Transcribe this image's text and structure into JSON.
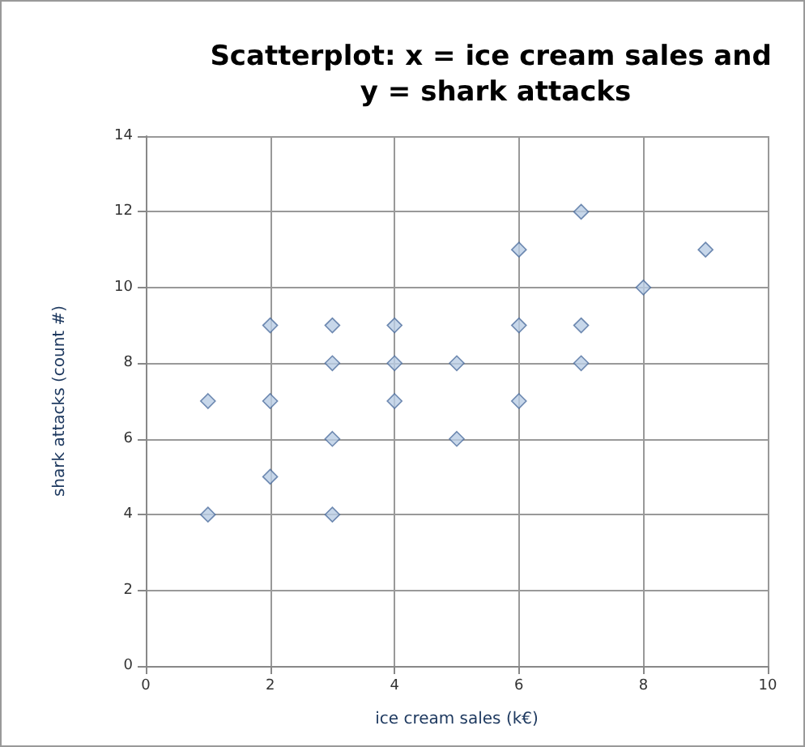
{
  "chart_data": {
    "type": "scatter",
    "title": "Scatterplot: x = ice cream sales and y = shark attacks",
    "xlabel": "ice cream sales (k€)",
    "ylabel": "shark attacks (count #)",
    "series": [
      {
        "color": "#b9cde5",
        "x": [
          1,
          1,
          2,
          2,
          2,
          3,
          3,
          3,
          3,
          4,
          4,
          4,
          5,
          5,
          6,
          6,
          6,
          7,
          7,
          7,
          8,
          9
        ],
        "values": [
          7,
          4,
          9,
          7,
          5,
          9,
          8,
          6,
          4,
          9,
          8,
          7,
          8,
          6,
          11,
          9,
          7,
          12,
          9,
          8,
          10,
          11
        ]
      }
    ],
    "xlim": [
      0,
      10
    ],
    "xticks": [
      0,
      2,
      4,
      6,
      8,
      10
    ],
    "ylim": [
      0,
      14
    ],
    "yticks": [
      0,
      2,
      4,
      6,
      8,
      10,
      12,
      14
    ],
    "grid": true,
    "marker": "diamond"
  }
}
